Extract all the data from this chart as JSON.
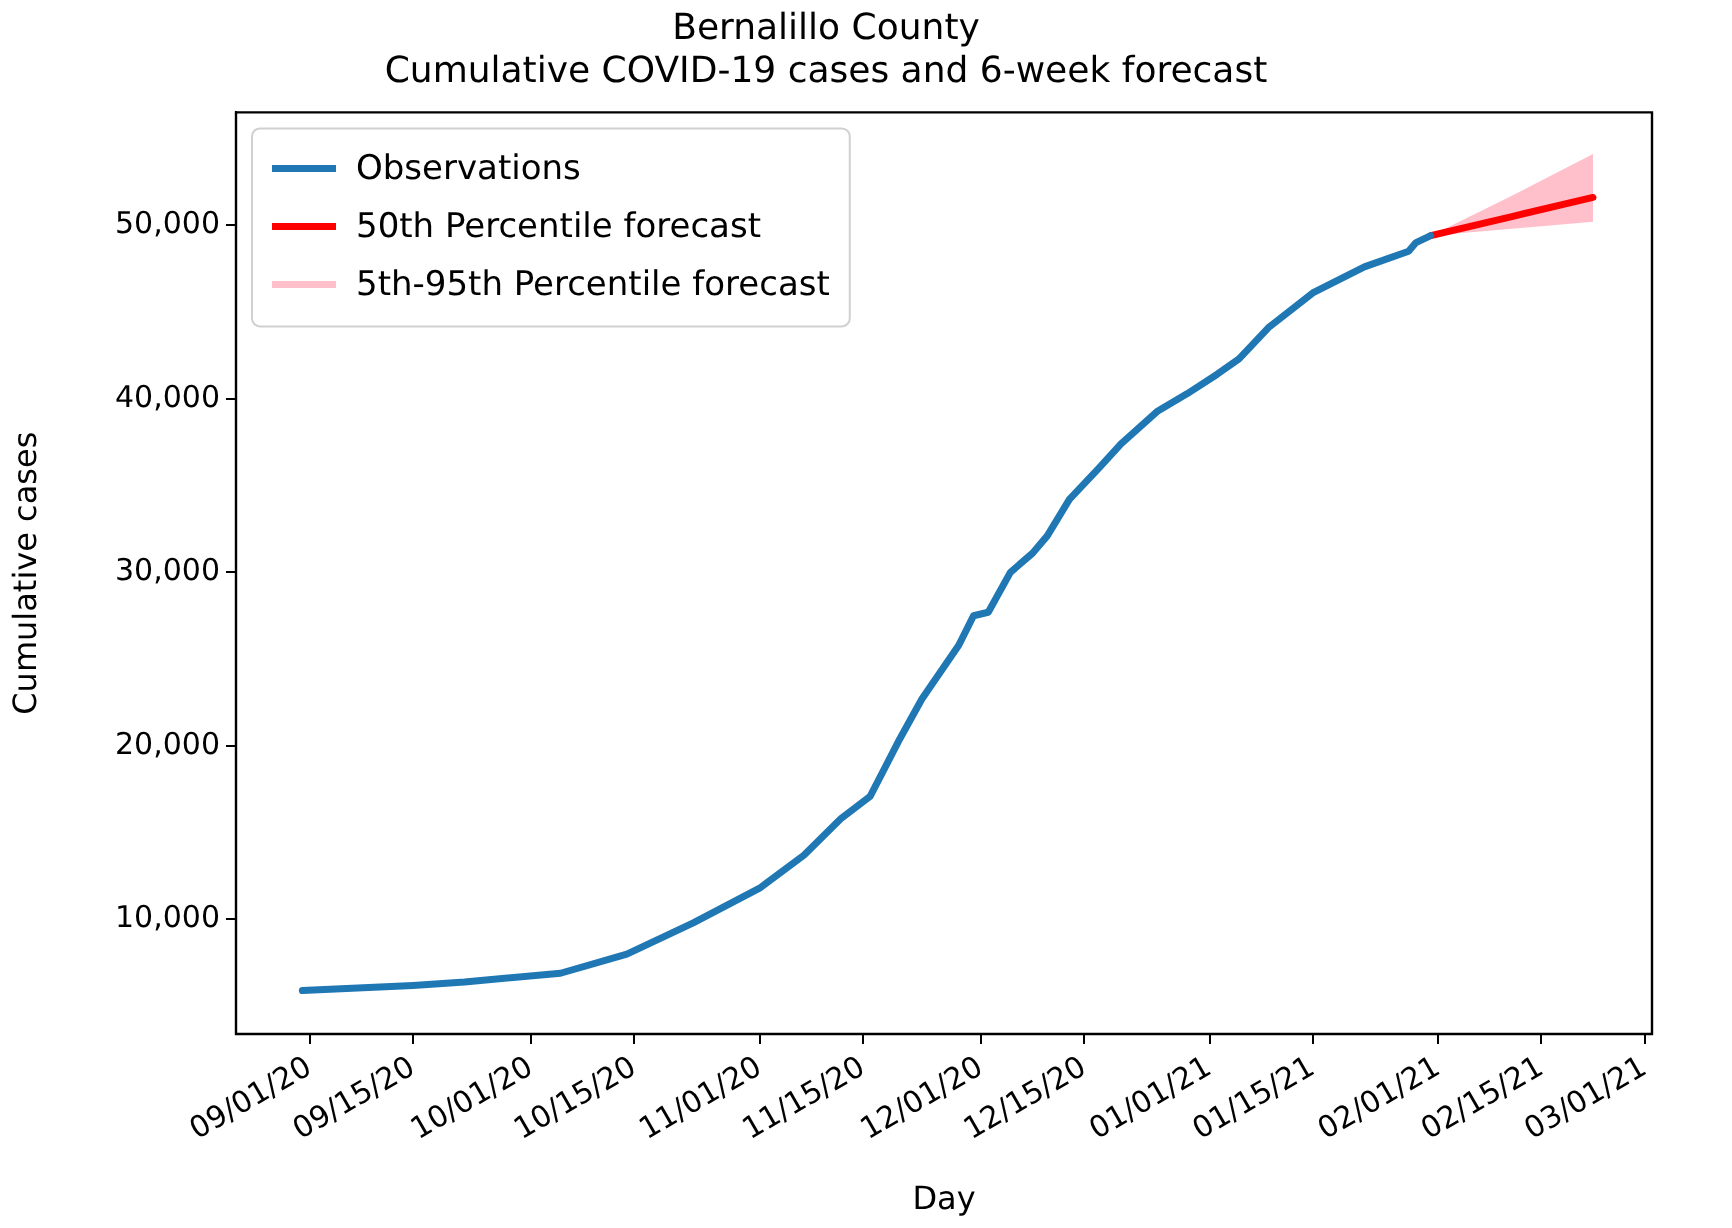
{
  "chart_data": {
    "type": "line",
    "title": "Bernalillo County\nCumulative COVID-19 cases and 6-week forecast",
    "xlabel": "Day",
    "ylabel": "Cumulative cases",
    "xlim": [
      "2020-08-22",
      "2021-03-02"
    ],
    "xticks": [
      {
        "value": "2020-09-01",
        "label": "09/01/20"
      },
      {
        "value": "2020-09-15",
        "label": "09/15/20"
      },
      {
        "value": "2020-10-01",
        "label": "10/01/20"
      },
      {
        "value": "2020-10-15",
        "label": "10/15/20"
      },
      {
        "value": "2020-11-01",
        "label": "11/01/20"
      },
      {
        "value": "2020-11-15",
        "label": "11/15/20"
      },
      {
        "value": "2020-12-01",
        "label": "12/01/20"
      },
      {
        "value": "2020-12-15",
        "label": "12/15/20"
      },
      {
        "value": "2021-01-01",
        "label": "01/01/21"
      },
      {
        "value": "2021-01-15",
        "label": "01/15/21"
      },
      {
        "value": "2021-02-01",
        "label": "02/01/21"
      },
      {
        "value": "2021-02-15",
        "label": "02/15/21"
      },
      {
        "value": "2021-03-01",
        "label": "03/01/21"
      }
    ],
    "ylim": [
      3400,
      56500
    ],
    "yticks": [
      {
        "value": 10000,
        "label": "10,000"
      },
      {
        "value": 20000,
        "label": "20,000"
      },
      {
        "value": 30000,
        "label": "30,000"
      },
      {
        "value": 40000,
        "label": "40,000"
      },
      {
        "value": 50000,
        "label": "50,000"
      }
    ],
    "grid": false,
    "legend": "top left",
    "marker": "none",
    "line_style": "solid",
    "series": [
      {
        "name": "Observations",
        "color": "#1f77b4",
        "x": [
          "2020-08-31",
          "2020-09-15",
          "2020-09-22",
          "2020-10-05",
          "2020-10-14",
          "2020-10-23",
          "2020-11-01",
          "2020-11-07",
          "2020-11-12",
          "2020-11-16",
          "2020-11-20",
          "2020-11-23",
          "2020-11-28",
          "2020-11-30",
          "2020-12-02",
          "2020-12-05",
          "2020-12-08",
          "2020-12-10",
          "2020-12-13",
          "2020-12-17",
          "2020-12-20",
          "2020-12-25",
          "2020-12-29",
          "2021-01-02",
          "2021-01-05",
          "2021-01-09",
          "2021-01-15",
          "2021-01-22",
          "2021-01-28",
          "2021-01-29",
          "2021-01-31"
        ],
        "values": [
          5900,
          6200,
          6400,
          6900,
          8000,
          9800,
          11800,
          13700,
          15800,
          17100,
          20400,
          22700,
          25800,
          27500,
          27700,
          30000,
          31100,
          32100,
          34200,
          36000,
          37400,
          39300,
          40300,
          41400,
          42300,
          44100,
          46100,
          47600,
          48500,
          49000,
          49400
        ]
      },
      {
        "name": "50th Percentile forecast",
        "color": "#ff0000",
        "x": [
          "2021-01-31",
          "2021-02-11",
          "2021-02-22"
        ],
        "values": [
          49400,
          50500,
          51600
        ],
        "lower": [
          49400,
          49800,
          50200
        ],
        "upper": [
          49400,
          51700,
          54100
        ]
      },
      {
        "name": "5th-95th Percentile forecast",
        "type": "area",
        "color": "#ffc0cb"
      }
    ]
  }
}
